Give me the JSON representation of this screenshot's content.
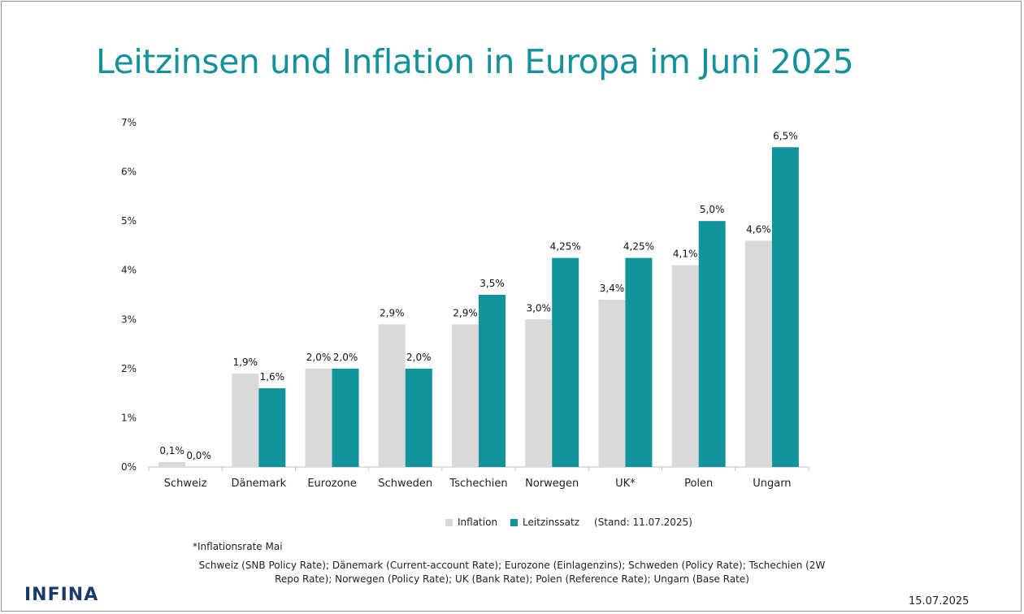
{
  "title": "Leitzinsen und Inflation in Europa im Juni 2025",
  "chart_data": {
    "type": "bar",
    "categories": [
      "Schweiz",
      "Dänemark",
      "Eurozone",
      "Schweden",
      "Tschechien",
      "Norwegen",
      "UK*",
      "Polen",
      "Ungarn"
    ],
    "series": [
      {
        "name": "Inflation",
        "color": "#d9d9d9",
        "values": [
          0.1,
          1.9,
          2.0,
          2.9,
          2.9,
          3.0,
          3.4,
          4.1,
          4.6
        ],
        "labels": [
          "0,1%",
          "1,9%",
          "2,0%",
          "2,9%",
          "2,9%",
          "3,0%",
          "3,4%",
          "4,1%",
          "4,6%"
        ]
      },
      {
        "name": "Leitzinssatz",
        "color": "#13949c",
        "values": [
          0.0,
          1.6,
          2.0,
          2.0,
          3.5,
          4.25,
          4.25,
          5.0,
          6.5
        ],
        "labels": [
          "0,0%",
          "1,6%",
          "2,0%",
          "2,0%",
          "3,5%",
          "4,25%",
          "4,25%",
          "5,0%",
          "6,5%"
        ]
      }
    ],
    "ylim": [
      0,
      7
    ],
    "yticks": [
      "0%",
      "1%",
      "2%",
      "3%",
      "4%",
      "5%",
      "6%",
      "7%"
    ],
    "grid": false,
    "legend_position": "bottom"
  },
  "legend": {
    "inflation": "Inflation",
    "leitzins": "Leitzinssatz",
    "stand": "(Stand: 11.07.2025)"
  },
  "footnote": "*Inflationsrate Mai",
  "sources": "Schweiz (SNB Policy Rate); Dänemark (Current-account Rate); Eurozone (Einlagenzins); Schweden (Policy Rate); Tschechien (2W Repo Rate); Norwegen (Policy Rate); UK (Bank Rate); Polen (Reference Rate); Ungarn (Base Rate)",
  "logo_text": "INFINA",
  "date": "15.07.2025"
}
